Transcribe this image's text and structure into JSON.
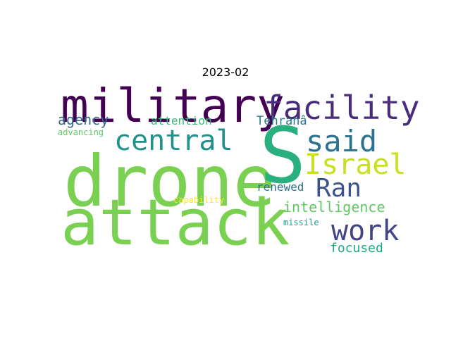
{
  "title": "2023-02",
  "words": [
    {
      "id": "drone",
      "text": "drone",
      "color": "#7ad151"
    },
    {
      "id": "attack",
      "text": "attack",
      "color": "#7ad151"
    },
    {
      "id": "military",
      "text": "military",
      "color": "#440154"
    },
    {
      "id": "s",
      "text": "S",
      "color": "#2ab07f"
    },
    {
      "id": "facility",
      "text": "facility",
      "color": "#472d7b"
    },
    {
      "id": "central",
      "text": "central",
      "color": "#21918c"
    },
    {
      "id": "said",
      "text": "said",
      "color": "#2c728e"
    },
    {
      "id": "israel",
      "text": "Israel",
      "color": "#c8e020"
    },
    {
      "id": "ran",
      "text": "Ran",
      "color": "#3b528b"
    },
    {
      "id": "work",
      "text": "work",
      "color": "#414487"
    },
    {
      "id": "agency",
      "text": "agency",
      "color": "#31688e"
    },
    {
      "id": "attention",
      "text": "attention",
      "color": "#3aba76"
    },
    {
      "id": "tehran",
      "text": "Tehranâ",
      "color": "#2a788e"
    },
    {
      "id": "advancing",
      "text": "advancing",
      "color": "#5ec962"
    },
    {
      "id": "renewed",
      "text": "renewed",
      "color": "#2c728e"
    },
    {
      "id": "intelligence",
      "text": "intelligence",
      "color": "#5ec962"
    },
    {
      "id": "capability",
      "text": "capability",
      "color": "#fde725"
    },
    {
      "id": "missile",
      "text": "missile",
      "color": "#1f9e89"
    },
    {
      "id": "focused",
      "text": "focused",
      "color": "#22a884"
    }
  ]
}
